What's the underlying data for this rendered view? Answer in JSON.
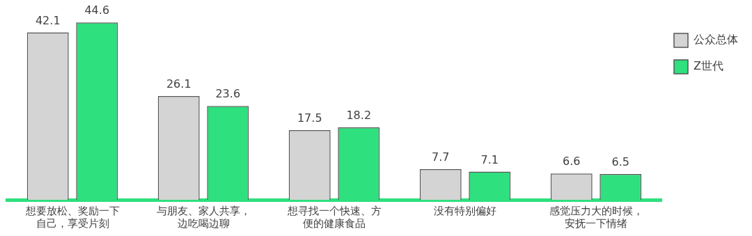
{
  "chart_data": {
    "type": "bar",
    "categories": [
      "想要放松、奖励一下自己，享受片刻",
      "与朋友、家人共享，边吃喝边聊",
      "想寻找一个快速、方便的健康食品",
      "没有特别偏好",
      "感觉压力大的时候，安抚一下情绪"
    ],
    "series": [
      {
        "name": "公众总体",
        "color": "#d4d4d4",
        "values": [
          42.1,
          26.1,
          17.5,
          7.7,
          6.6
        ]
      },
      {
        "name": "Z世代",
        "color": "#2ee07e",
        "values": [
          44.6,
          23.6,
          18.2,
          7.1,
          6.5
        ]
      }
    ],
    "data_labels": true,
    "grid": false,
    "legend": "top right",
    "tick_labels": "x"
  }
}
